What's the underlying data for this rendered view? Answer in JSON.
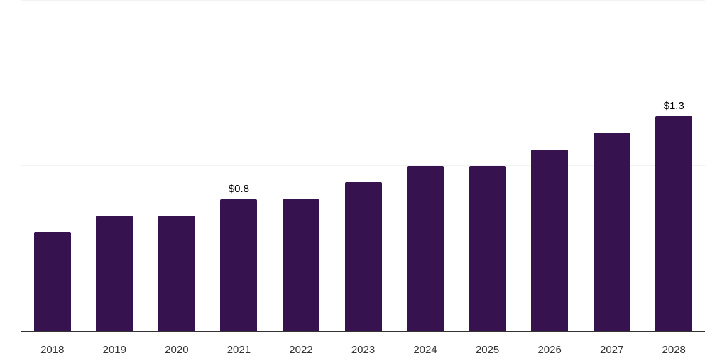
{
  "chart_data": {
    "type": "bar",
    "title": "",
    "xlabel": "",
    "ylabel": "",
    "categories": [
      "2018",
      "2019",
      "2020",
      "2021",
      "2022",
      "2023",
      "2024",
      "2025",
      "2026",
      "2027",
      "2028"
    ],
    "values": [
      0.6,
      0.7,
      0.7,
      0.8,
      0.8,
      0.9,
      1.0,
      1.0,
      1.1,
      1.2,
      1.3
    ],
    "data_labels": [
      "",
      "",
      "",
      "$0.8",
      "",
      "",
      "",
      "",
      "",
      "",
      "$1.3"
    ],
    "ylim": [
      0,
      2
    ],
    "gridline_values": [
      1.0,
      2.0
    ],
    "grid": "horizontal-only",
    "legend_position": "none",
    "colors": {
      "bar": "#36124E",
      "axis_line": "#333333",
      "gridline": "#F3F3F3",
      "value_label": "#000000",
      "tick_label": "#333333"
    }
  }
}
